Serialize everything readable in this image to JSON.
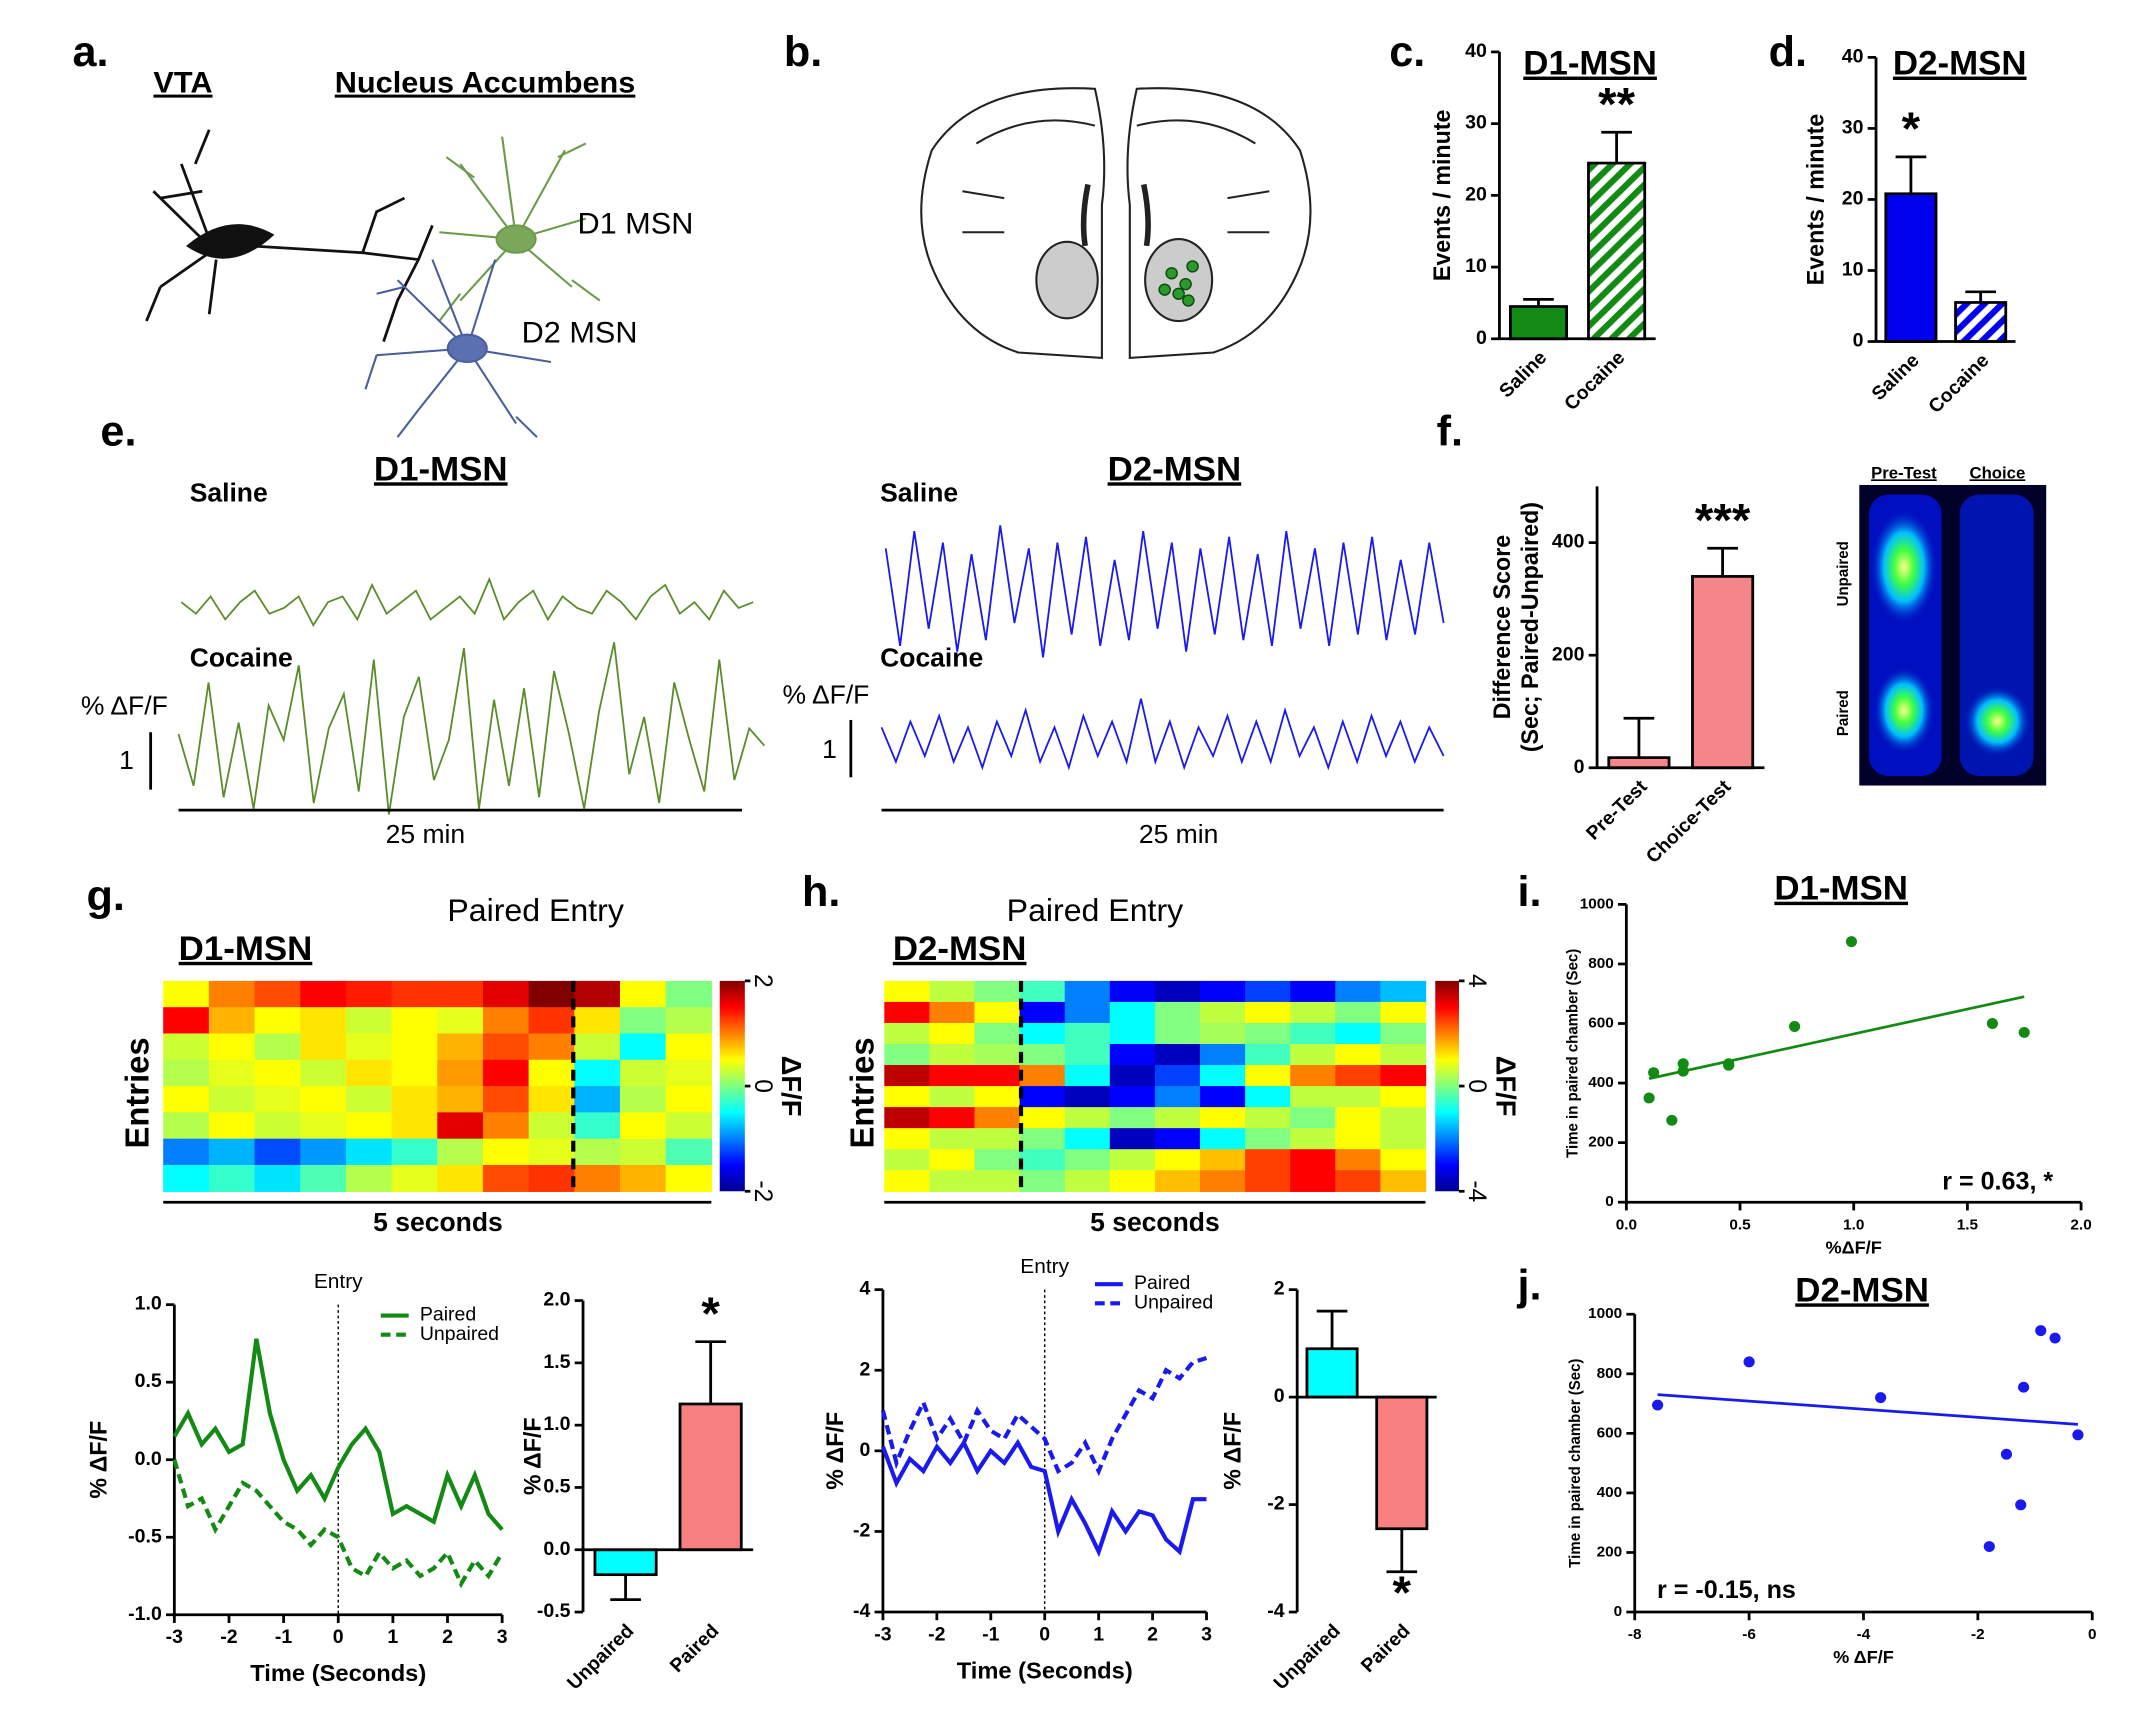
{
  "figure": {
    "panel_labels": [
      "a.",
      "b.",
      "c.",
      "d.",
      "e.",
      "f.",
      "g.",
      "h.",
      "i.",
      "j."
    ],
    "diagram": {
      "vta": "VTA",
      "nacc": "Nucleus Accumbens",
      "d1": "D1 MSN",
      "d2": "D2 MSN"
    },
    "place_image": {
      "columns": [
        "Pre-Test",
        "Choice"
      ],
      "rows": [
        "Unpaired",
        "Paired"
      ]
    }
  },
  "chart_data": [
    {
      "type": "bar",
      "title": "D1-MSN",
      "ylabel": "Events  / minute",
      "categories": [
        "Saline",
        "Cocaine"
      ],
      "values": [
        4.5,
        24.5
      ],
      "errors": [
        1.0,
        4.3
      ],
      "colors": [
        "#138a13",
        "#138a13"
      ],
      "patterns": [
        "solid",
        "hatched"
      ],
      "ylim": [
        0,
        40
      ],
      "yticks": [
        0,
        10,
        20,
        30,
        40
      ],
      "annotation": "**"
    },
    {
      "type": "bar",
      "title": "D2-MSN",
      "ylabel": "Events  / minute",
      "categories": [
        "Saline",
        "Cocaine"
      ],
      "values": [
        20.8,
        5.5
      ],
      "errors": [
        5.2,
        1.5
      ],
      "colors": [
        "#0000ee",
        "#0000ee"
      ],
      "patterns": [
        "solid",
        "hatched"
      ],
      "ylim": [
        0,
        40
      ],
      "yticks": [
        0,
        10,
        20,
        30,
        40
      ],
      "annotation": "*"
    },
    {
      "type": "trace",
      "title": "D1-MSN",
      "ylabel": "% ΔF/F",
      "xlabel": "25 min",
      "scale_bar": 1,
      "series": [
        {
          "name": "Saline",
          "color": "#5b8c2a",
          "values": [
            0.1,
            -0.1,
            0.2,
            -0.2,
            0.1,
            0.3,
            -0.1,
            0.0,
            0.2,
            -0.3,
            0.1,
            0.2,
            -0.2,
            0.4,
            -0.1,
            0.1,
            0.3,
            -0.2,
            0.0,
            0.2,
            -0.1,
            0.5,
            -0.2,
            0.1,
            0.3,
            -0.2,
            0.2,
            0.0,
            -0.1,
            0.3,
            0.1,
            -0.2,
            0.2,
            0.4,
            -0.1,
            0.1,
            -0.2,
            0.3,
            0.0,
            0.1
          ]
        },
        {
          "name": "Cocaine",
          "color": "#5b8c2a",
          "values": [
            0.3,
            -0.6,
            1.2,
            -0.8,
            0.5,
            -1.0,
            0.8,
            0.2,
            1.5,
            -0.9,
            0.4,
            1.0,
            -0.7,
            1.6,
            -1.1,
            0.6,
            1.3,
            -0.5,
            0.2,
            1.8,
            -1.0,
            0.9,
            -0.6,
            1.1,
            -0.8,
            1.4,
            0.3,
            -1.0,
            0.7,
            1.9,
            -0.4,
            0.6,
            -0.9,
            1.2,
            0.2,
            -0.7,
            1.6,
            -0.5,
            0.4,
            0.1
          ]
        }
      ]
    },
    {
      "type": "trace",
      "title": "D2-MSN",
      "ylabel": "% ΔF/F",
      "xlabel": "25 min",
      "scale_bar": 1,
      "series": [
        {
          "name": "Saline",
          "color": "#1a1aee",
          "values": [
            0.8,
            -0.9,
            1.1,
            -0.6,
            0.9,
            -1.0,
            0.7,
            -0.8,
            1.2,
            -0.5,
            0.8,
            -1.1,
            0.9,
            -0.7,
            1.0,
            -0.9,
            0.6,
            -0.8,
            1.1,
            -0.6,
            0.9,
            -1.0,
            0.8,
            -0.7,
            1.0,
            -0.8,
            0.7,
            -0.9,
            1.1,
            -0.6,
            0.8,
            -0.9,
            0.9,
            -0.7,
            1.0,
            -0.8,
            0.6,
            -0.7,
            0.9,
            -0.5
          ]
        },
        {
          "name": "Cocaine",
          "color": "#1a1aee",
          "values": [
            0.3,
            -0.3,
            0.4,
            -0.2,
            0.5,
            -0.3,
            0.3,
            -0.4,
            0.4,
            -0.2,
            0.6,
            -0.3,
            0.3,
            -0.4,
            0.5,
            -0.2,
            0.4,
            -0.3,
            0.8,
            -0.3,
            0.4,
            -0.4,
            0.3,
            -0.2,
            0.5,
            -0.3,
            0.4,
            -0.3,
            0.6,
            -0.2,
            0.3,
            -0.4,
            0.4,
            -0.3,
            0.5,
            -0.2,
            0.4,
            -0.3,
            0.3,
            -0.2
          ]
        }
      ]
    },
    {
      "type": "bar",
      "ylabel": [
        "Difference  Score",
        "(Sec; Paired-Unpaired)"
      ],
      "categories": [
        "Pre-Test",
        "Choice-Test"
      ],
      "values": [
        18,
        340
      ],
      "errors": [
        70,
        50
      ],
      "colors": [
        "#f4868a",
        "#f4868a"
      ],
      "patterns": [
        "solid",
        "solid"
      ],
      "ylim": [
        0,
        500
      ],
      "yticks": [
        0,
        200,
        400
      ],
      "annotation": "***"
    },
    {
      "type": "heatmap",
      "title": "Paired Entry",
      "subtitle": "D1-MSN",
      "ylabel": "Entries",
      "xlabel": "5 seconds",
      "clabel": "ΔF/F",
      "colormap": "jet",
      "clim": [
        -2,
        2
      ],
      "cticks": [
        2,
        0,
        -2
      ],
      "values": [
        [
          0.5,
          1,
          1.2,
          1.5,
          1.4,
          1.3,
          1.3,
          1.6,
          2,
          1.8,
          0.5,
          0
        ],
        [
          1.5,
          0.8,
          0.5,
          0.6,
          0.3,
          0.5,
          0.4,
          1,
          1.3,
          0.6,
          0,
          0.2
        ],
        [
          0.3,
          0.5,
          0.2,
          0.6,
          0.4,
          0.5,
          0.8,
          1.2,
          1,
          0.3,
          -0.5,
          0.5
        ],
        [
          0.2,
          0.4,
          0.5,
          0.3,
          0.6,
          0.5,
          0.9,
          1.5,
          0.5,
          -0.5,
          0.3,
          0.4
        ],
        [
          0.5,
          0.3,
          0.4,
          0.5,
          0.3,
          0.6,
          0.8,
          1.2,
          0.6,
          -0.8,
          0.2,
          0.5
        ],
        [
          0.2,
          0.5,
          0.3,
          0.4,
          0.5,
          0.6,
          1.6,
          1.0,
          0.3,
          -0.3,
          0.5,
          0.3
        ],
        [
          -1,
          -0.8,
          -1.2,
          -0.9,
          -0.6,
          -0.3,
          0.2,
          0.5,
          0.4,
          0.2,
          0.3,
          -0.2
        ],
        [
          -0.5,
          -0.3,
          -0.6,
          -0.2,
          0.2,
          0.4,
          0.6,
          1.2,
          1.3,
          1,
          0.8,
          0.5
        ]
      ]
    },
    {
      "type": "heatmap",
      "title": "Paired Entry",
      "subtitle": "D2-MSN",
      "ylabel": "Entries",
      "xlabel": "5 seconds",
      "clabel": "ΔF/F",
      "colormap": "jet",
      "clim": [
        -4,
        4
      ],
      "cticks": [
        4,
        0,
        -4
      ],
      "values": [
        [
          1,
          0.5,
          0,
          -0.5,
          -2,
          -3,
          -3.5,
          -3,
          -2.5,
          -3,
          -2,
          -1.5
        ],
        [
          3,
          2,
          1,
          -3,
          -2,
          -1,
          0,
          0.5,
          1,
          0.5,
          0,
          1
        ],
        [
          0.5,
          1,
          0,
          -1,
          -0.5,
          -1,
          0,
          0.3,
          0,
          -0.5,
          -1,
          0
        ],
        [
          0,
          0.5,
          0.3,
          0,
          -0.5,
          -3,
          -3.5,
          -2,
          -0.5,
          0.5,
          1,
          0.5
        ],
        [
          3.5,
          3,
          3,
          2,
          -1,
          -3.5,
          -2.5,
          -1,
          1,
          2,
          2.5,
          3
        ],
        [
          1,
          0.5,
          1,
          -3,
          -3.5,
          -3,
          -2,
          -3,
          -1,
          0.5,
          0.5,
          1
        ],
        [
          3.5,
          3,
          2,
          1,
          0.5,
          0,
          0.5,
          1,
          0.5,
          0,
          1,
          0.5
        ],
        [
          1,
          0.5,
          0.5,
          0,
          -1,
          -3.5,
          -3,
          -1,
          0,
          0.5,
          1,
          0.5
        ],
        [
          0.5,
          1,
          0,
          -0.5,
          0,
          0.5,
          1,
          1.5,
          2.5,
          3,
          2,
          1
        ],
        [
          1,
          0.5,
          0.5,
          0,
          0.5,
          1,
          1.5,
          2,
          2.5,
          3,
          2.5,
          1.5
        ]
      ]
    },
    {
      "type": "line",
      "xlabel": "Time (Seconds)",
      "ylabel": "% ΔF/F",
      "annotation": "Entry",
      "x": [
        -3,
        -2.75,
        -2.5,
        -2.25,
        -2,
        -1.75,
        -1.5,
        -1.25,
        -1,
        -0.75,
        -0.5,
        -0.25,
        0,
        0.25,
        0.5,
        0.75,
        1,
        1.25,
        1.5,
        1.75,
        2,
        2.25,
        2.5,
        2.75,
        3
      ],
      "series": [
        {
          "name": "Paired",
          "color": "#138a13",
          "linestyle": "solid",
          "values": [
            0.15,
            0.3,
            0.1,
            0.2,
            0.05,
            0.1,
            0.78,
            0.3,
            0.0,
            -0.2,
            -0.1,
            -0.25,
            -0.05,
            0.1,
            0.2,
            0.05,
            -0.35,
            -0.3,
            -0.35,
            -0.4,
            -0.1,
            -0.3,
            -0.1,
            -0.35,
            -0.45
          ]
        },
        {
          "name": "Unpaired",
          "color": "#138a13",
          "linestyle": "dashed",
          "values": [
            0,
            -0.3,
            -0.25,
            -0.45,
            -0.3,
            -0.15,
            -0.2,
            -0.3,
            -0.4,
            -0.45,
            -0.55,
            -0.45,
            -0.5,
            -0.7,
            -0.75,
            -0.6,
            -0.7,
            -0.65,
            -0.75,
            -0.7,
            -0.6,
            -0.8,
            -0.65,
            -0.75,
            -0.6
          ]
        }
      ],
      "xlim": [
        -3,
        3
      ],
      "xticks": [
        -3,
        -2,
        -1,
        0,
        1,
        2,
        3
      ],
      "ylim": [
        -1,
        1
      ],
      "yticks": [
        {
          "value": -1,
          "label": "-1.0"
        },
        {
          "value": -0.5,
          "label": "-0.5"
        },
        {
          "value": 0,
          "label": "0.0"
        },
        {
          "value": 0.5,
          "label": "0.5"
        },
        {
          "value": 1,
          "label": "1.0"
        }
      ]
    },
    {
      "type": "bar",
      "ylabel": "% ΔF/F",
      "categories": [
        "Unpaired",
        "Paired"
      ],
      "values": [
        -0.2,
        1.17
      ],
      "errors": [
        0.2,
        0.5
      ],
      "colors": [
        "#00ffff",
        "#f88080"
      ],
      "patterns": [
        "solid",
        "solid"
      ],
      "ylim": [
        -0.5,
        2
      ],
      "yticks": [
        {
          "value": -0.5,
          "label": "-0.5"
        },
        {
          "value": 0,
          "label": "0.0"
        },
        {
          "value": 0.5,
          "label": "0.5"
        },
        {
          "value": 1,
          "label": "1.0"
        },
        {
          "value": 1.5,
          "label": "1.5"
        },
        {
          "value": 2,
          "label": "2.0"
        }
      ],
      "annotation": "*"
    },
    {
      "type": "line",
      "xlabel": "Time (Seconds)",
      "ylabel": "% ΔF/F",
      "annotation": "Entry",
      "x": [
        -3,
        -2.75,
        -2.5,
        -2.25,
        -2,
        -1.75,
        -1.5,
        -1.25,
        -1,
        -0.75,
        -0.5,
        -0.25,
        0,
        0.25,
        0.5,
        0.75,
        1,
        1.25,
        1.5,
        1.75,
        2,
        2.25,
        2.5,
        2.75,
        3
      ],
      "series": [
        {
          "name": "Paired",
          "color": "#1a1aee",
          "linestyle": "solid",
          "values": [
            0.1,
            -0.8,
            -0.2,
            -0.5,
            0.1,
            -0.3,
            0.2,
            -0.5,
            0.0,
            -0.3,
            0.2,
            -0.4,
            -0.5,
            -2.0,
            -1.2,
            -1.8,
            -2.5,
            -1.5,
            -2.0,
            -1.5,
            -1.6,
            -2.2,
            -2.5,
            -1.2,
            -1.2
          ]
        },
        {
          "name": "Unpaired",
          "color": "#1a1aee",
          "linestyle": "dashed",
          "values": [
            1.0,
            -0.3,
            0.5,
            1.2,
            0.3,
            0.8,
            0.2,
            1.0,
            0.5,
            0.3,
            0.9,
            0.6,
            0.3,
            -0.5,
            -0.3,
            0.2,
            -0.5,
            0.3,
            0.9,
            1.5,
            1.3,
            2.0,
            1.8,
            2.2,
            2.3
          ]
        }
      ],
      "xlim": [
        -3,
        3
      ],
      "xticks": [
        -3,
        -2,
        -1,
        0,
        1,
        2,
        3
      ],
      "ylim": [
        -4,
        4
      ],
      "yticks": [
        -4,
        -2,
        0,
        2,
        4
      ]
    },
    {
      "type": "bar",
      "ylabel": "% ΔF/F",
      "categories": [
        "Unpaired",
        "Paired"
      ],
      "values": [
        0.9,
        -2.45
      ],
      "errors": [
        0.7,
        0.8
      ],
      "colors": [
        "#00ffff",
        "#f88080"
      ],
      "patterns": [
        "solid",
        "solid"
      ],
      "ylim": [
        -4,
        2
      ],
      "yticks": [
        -4,
        -2,
        0,
        2
      ],
      "annotation": "*"
    },
    {
      "type": "scatter",
      "title": "D1-MSN",
      "xlabel": "%ΔF/F",
      "ylabel": "Time in paired chamber (Sec)",
      "annotation": "r = 0.63, *",
      "color": "#138a13",
      "x": [
        0.1,
        0.12,
        0.2,
        0.25,
        0.25,
        0.45,
        0.45,
        0.74,
        0.99,
        1.61,
        1.75
      ],
      "y": [
        350,
        435,
        275,
        440,
        465,
        465,
        460,
        590,
        875,
        600,
        570
      ],
      "fit": {
        "x": [
          0.1,
          1.75
        ],
        "y": [
          415,
          690
        ]
      },
      "xlim": [
        0,
        2
      ],
      "xticks": [
        {
          "value": 0,
          "label": "0.0"
        },
        {
          "value": 0.5,
          "label": "0.5"
        },
        {
          "value": 1,
          "label": "1.0"
        },
        {
          "value": 1.5,
          "label": "1.5"
        },
        {
          "value": 2,
          "label": "2.0"
        }
      ],
      "ylim": [
        0,
        1000
      ],
      "yticks": [
        0,
        200,
        400,
        600,
        800,
        1000
      ]
    },
    {
      "type": "scatter",
      "title": "D2-MSN",
      "xlabel": "% ΔF/F",
      "ylabel": "Time in paired chamber (Sec)",
      "annotation": "r = -0.15, ns",
      "color": "#1a1aee",
      "x": [
        -7.6,
        -6,
        -3.7,
        -1.5,
        -1.2,
        -1.25,
        -1.8,
        -0.9,
        -0.65,
        -0.25
      ],
      "y": [
        695,
        840,
        720,
        530,
        755,
        360,
        220,
        945,
        920,
        595
      ],
      "fit": {
        "x": [
          -7.6,
          -0.25
        ],
        "y": [
          730,
          630
        ]
      },
      "xlim": [
        -8,
        0
      ],
      "xticks": [
        -8,
        -6,
        -4,
        -2,
        0
      ],
      "ylim": [
        0,
        1000
      ],
      "yticks": [
        0,
        200,
        400,
        600,
        800,
        1000
      ]
    }
  ]
}
